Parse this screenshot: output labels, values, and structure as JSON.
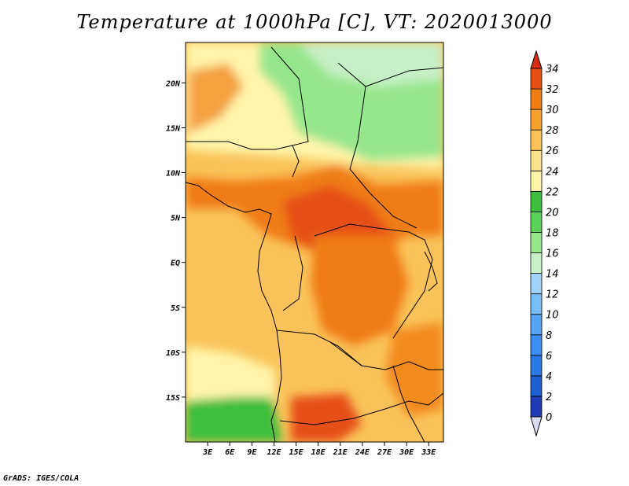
{
  "title": "Temperature at 1000hPa [C], VT: 2020013000",
  "credit": "GrADS: IGES/COLA",
  "map": {
    "lon_range": [
      0,
      35
    ],
    "lat_range": [
      -20,
      24.5
    ],
    "x_ticks": [
      {
        "lon": 3,
        "label": "3E"
      },
      {
        "lon": 6,
        "label": "6E"
      },
      {
        "lon": 9,
        "label": "9E"
      },
      {
        "lon": 12,
        "label": "12E"
      },
      {
        "lon": 15,
        "label": "15E"
      },
      {
        "lon": 18,
        "label": "18E"
      },
      {
        "lon": 21,
        "label": "21E"
      },
      {
        "lon": 24,
        "label": "24E"
      },
      {
        "lon": 27,
        "label": "27E"
      },
      {
        "lon": 30,
        "label": "30E"
      },
      {
        "lon": 33,
        "label": "33E"
      }
    ],
    "y_ticks": [
      {
        "lat": 20,
        "label": "20N"
      },
      {
        "lat": 15,
        "label": "15N"
      },
      {
        "lat": 10,
        "label": "10N"
      },
      {
        "lat": 5,
        "label": "5N"
      },
      {
        "lat": 0,
        "label": "EQ"
      },
      {
        "lat": -5,
        "label": "5S"
      },
      {
        "lat": -10,
        "label": "10S"
      },
      {
        "lat": -15,
        "label": "15S"
      }
    ]
  },
  "colorbar": {
    "levels": [
      {
        "value": "0",
        "color": "#1a1a8c"
      },
      {
        "value": "2",
        "color": "#1f3cb4"
      },
      {
        "value": "4",
        "color": "#1e5fd2"
      },
      {
        "value": "6",
        "color": "#2a78e6"
      },
      {
        "value": "8",
        "color": "#3c8ef0"
      },
      {
        "value": "10",
        "color": "#55a4f5"
      },
      {
        "value": "12",
        "color": "#78bcf8"
      },
      {
        "value": "14",
        "color": "#a0d2fa"
      },
      {
        "value": "16",
        "color": "#c8f0c8"
      },
      {
        "value": "18",
        "color": "#96e68c"
      },
      {
        "value": "20",
        "color": "#5ad25a"
      },
      {
        "value": "22",
        "color": "#3cbe3c"
      },
      {
        "value": "24",
        "color": "#fff5aa"
      },
      {
        "value": "26",
        "color": "#fae18c"
      },
      {
        "value": "28",
        "color": "#fac35a"
      },
      {
        "value": "30",
        "color": "#f5a02d"
      },
      {
        "value": "32",
        "color": "#f07d14"
      },
      {
        "value": "34",
        "color": "#e65014"
      }
    ],
    "under_color": "#dcdcf5",
    "over_color": "#d72d14"
  },
  "field_colors": {
    "cool_north": "#c8f0c8",
    "green_north": "#96e68c",
    "ocean_south_green": "#3cbe3c",
    "atlantic": "#fac35a",
    "atlantic_light": "#fff5aa",
    "hot_core": "#f07d14",
    "very_hot": "#e65014"
  }
}
